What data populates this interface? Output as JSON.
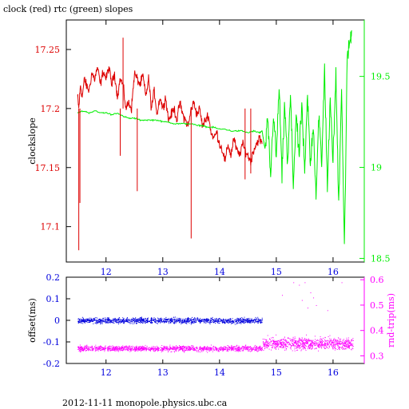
{
  "title": "clock (red) rtc (green) slopes",
  "footer": "2012-11-11 monopole.physics.ubc.ca",
  "colors": {
    "clock": "#dd0000",
    "rtc": "#00ee00",
    "offset": "#0000dd",
    "rndtrip": "#ff00ff",
    "axis": "#000000"
  },
  "chart_data": [
    {
      "type": "line",
      "title": "clock (red) rtc (green) slopes",
      "xlabel": "",
      "ylabel": "clockslope",
      "ylabel_right": "",
      "xlim": [
        11.3,
        16.55
      ],
      "ylim": [
        17.07,
        17.275
      ],
      "ylim_right": [
        18.48,
        19.81
      ],
      "x_ticks": [
        12,
        13,
        14,
        15,
        16
      ],
      "y_ticks": [
        17.1,
        17.15,
        17.2,
        17.25
      ],
      "y_ticks_right": [
        18.5,
        19,
        19.5
      ],
      "series": [
        {
          "color": "red",
          "axis": "left",
          "x": [
            11.5,
            11.52,
            11.55,
            11.58,
            11.62,
            11.65,
            11.7,
            11.75,
            11.8,
            11.85,
            11.9,
            11.95,
            12.0,
            12.05,
            12.1,
            12.15,
            12.2,
            12.25,
            12.3,
            12.35,
            12.4,
            12.45,
            12.5,
            12.55,
            12.6,
            12.65,
            12.7,
            12.75,
            12.8,
            12.85,
            12.9,
            12.95,
            13.0,
            13.05,
            13.1,
            13.15,
            13.2,
            13.25,
            13.3,
            13.35,
            13.4,
            13.45,
            13.5,
            13.55,
            13.6,
            13.65,
            13.7,
            13.75,
            13.8,
            13.85,
            13.9,
            13.95,
            14.0,
            14.05,
            14.1,
            14.15,
            14.2,
            14.25,
            14.3,
            14.35,
            14.4,
            14.45,
            14.5,
            14.55,
            14.6,
            14.65,
            14.7,
            14.75
          ],
          "y": [
            17.21,
            17.2,
            17.22,
            17.21,
            17.225,
            17.22,
            17.215,
            17.23,
            17.225,
            17.235,
            17.22,
            17.232,
            17.225,
            17.235,
            17.22,
            17.23,
            17.21,
            17.225,
            17.22,
            17.2,
            17.205,
            17.2,
            17.23,
            17.225,
            17.22,
            17.228,
            17.21,
            17.225,
            17.2,
            17.215,
            17.195,
            17.21,
            17.2,
            17.21,
            17.19,
            17.195,
            17.2,
            17.19,
            17.205,
            17.195,
            17.19,
            17.185,
            17.2,
            17.205,
            17.195,
            17.2,
            17.185,
            17.19,
            17.195,
            17.18,
            17.175,
            17.18,
            17.17,
            17.165,
            17.155,
            17.17,
            17.16,
            17.175,
            17.165,
            17.16,
            17.17,
            17.165,
            17.16,
            17.155,
            17.165,
            17.17,
            17.175,
            17.17
          ]
        },
        {
          "color": "green",
          "axis": "right",
          "x": [
            11.5,
            11.6,
            11.7,
            11.8,
            11.9,
            12.0,
            12.1,
            12.2,
            12.3,
            12.4,
            12.5,
            12.6,
            12.7,
            12.8,
            12.9,
            13.0,
            13.1,
            13.2,
            13.3,
            13.4,
            13.5,
            13.6,
            13.7,
            13.8,
            13.9,
            14.0,
            14.1,
            14.2,
            14.3,
            14.4,
            14.5,
            14.6,
            14.7,
            14.75,
            14.8,
            14.85,
            14.9,
            14.95,
            15.0,
            15.05,
            15.1,
            15.15,
            15.2,
            15.25,
            15.3,
            15.35,
            15.4,
            15.45,
            15.5,
            15.55,
            15.6,
            15.65,
            15.7,
            15.75,
            15.8,
            15.85,
            15.9,
            15.95,
            16.0,
            16.05,
            16.1,
            16.15,
            16.2,
            16.25,
            16.3,
            16.33
          ],
          "y": [
            19.3,
            19.31,
            19.3,
            19.31,
            19.3,
            19.3,
            19.29,
            19.3,
            19.28,
            19.27,
            19.27,
            19.26,
            19.26,
            19.26,
            19.26,
            19.25,
            19.25,
            19.24,
            19.24,
            19.24,
            19.24,
            19.23,
            19.23,
            19.22,
            19.22,
            19.21,
            19.21,
            19.2,
            19.2,
            19.2,
            19.19,
            19.2,
            19.19,
            19.2,
            19.1,
            19.25,
            18.95,
            19.3,
            19.05,
            19.45,
            18.95,
            19.35,
            19.0,
            19.4,
            18.9,
            19.3,
            19.05,
            19.35,
            18.95,
            19.4,
            19.0,
            19.25,
            18.85,
            19.3,
            19.0,
            19.55,
            18.9,
            19.35,
            19.05,
            19.5,
            18.8,
            19.45,
            18.55,
            19.6,
            19.7,
            19.75
          ]
        }
      ]
    },
    {
      "type": "scatter",
      "xlabel": "",
      "ylabel": "offset(ms)",
      "ylabel_right": "rnd-trip(ms)",
      "xlim": [
        11.3,
        16.55
      ],
      "ylim": [
        -0.2,
        0.2
      ],
      "ylim_right": [
        0.27,
        0.61
      ],
      "x_ticks": [
        12,
        13,
        14,
        15,
        16
      ],
      "y_ticks": [
        -0.2,
        -0.1,
        0,
        0.1,
        0.2
      ],
      "y_ticks_right": [
        0.3,
        0.4,
        0.5,
        0.6
      ],
      "series": [
        {
          "color": "blue",
          "axis": "left",
          "x_range": [
            11.5,
            14.75
          ],
          "center": 0.0,
          "spread": 0.012,
          "count": 1400
        },
        {
          "color": "magenta",
          "axis": "right",
          "x_range": [
            11.5,
            14.75
          ],
          "center": 0.33,
          "spread": 0.01,
          "count": 1400
        },
        {
          "color": "magenta",
          "axis": "right",
          "x_range": [
            14.75,
            16.35
          ],
          "center": 0.35,
          "spread": 0.022,
          "count": 900
        },
        {
          "color": "magenta",
          "axis": "right",
          "x": [
            15.1,
            15.3,
            15.4,
            15.5,
            15.45,
            15.6,
            15.7,
            15.9,
            16.15,
            15.55,
            15.65
          ],
          "y": [
            0.54,
            0.59,
            0.58,
            0.59,
            0.52,
            0.55,
            0.5,
            0.48,
            0.59,
            0.49,
            0.53
          ]
        }
      ]
    }
  ]
}
